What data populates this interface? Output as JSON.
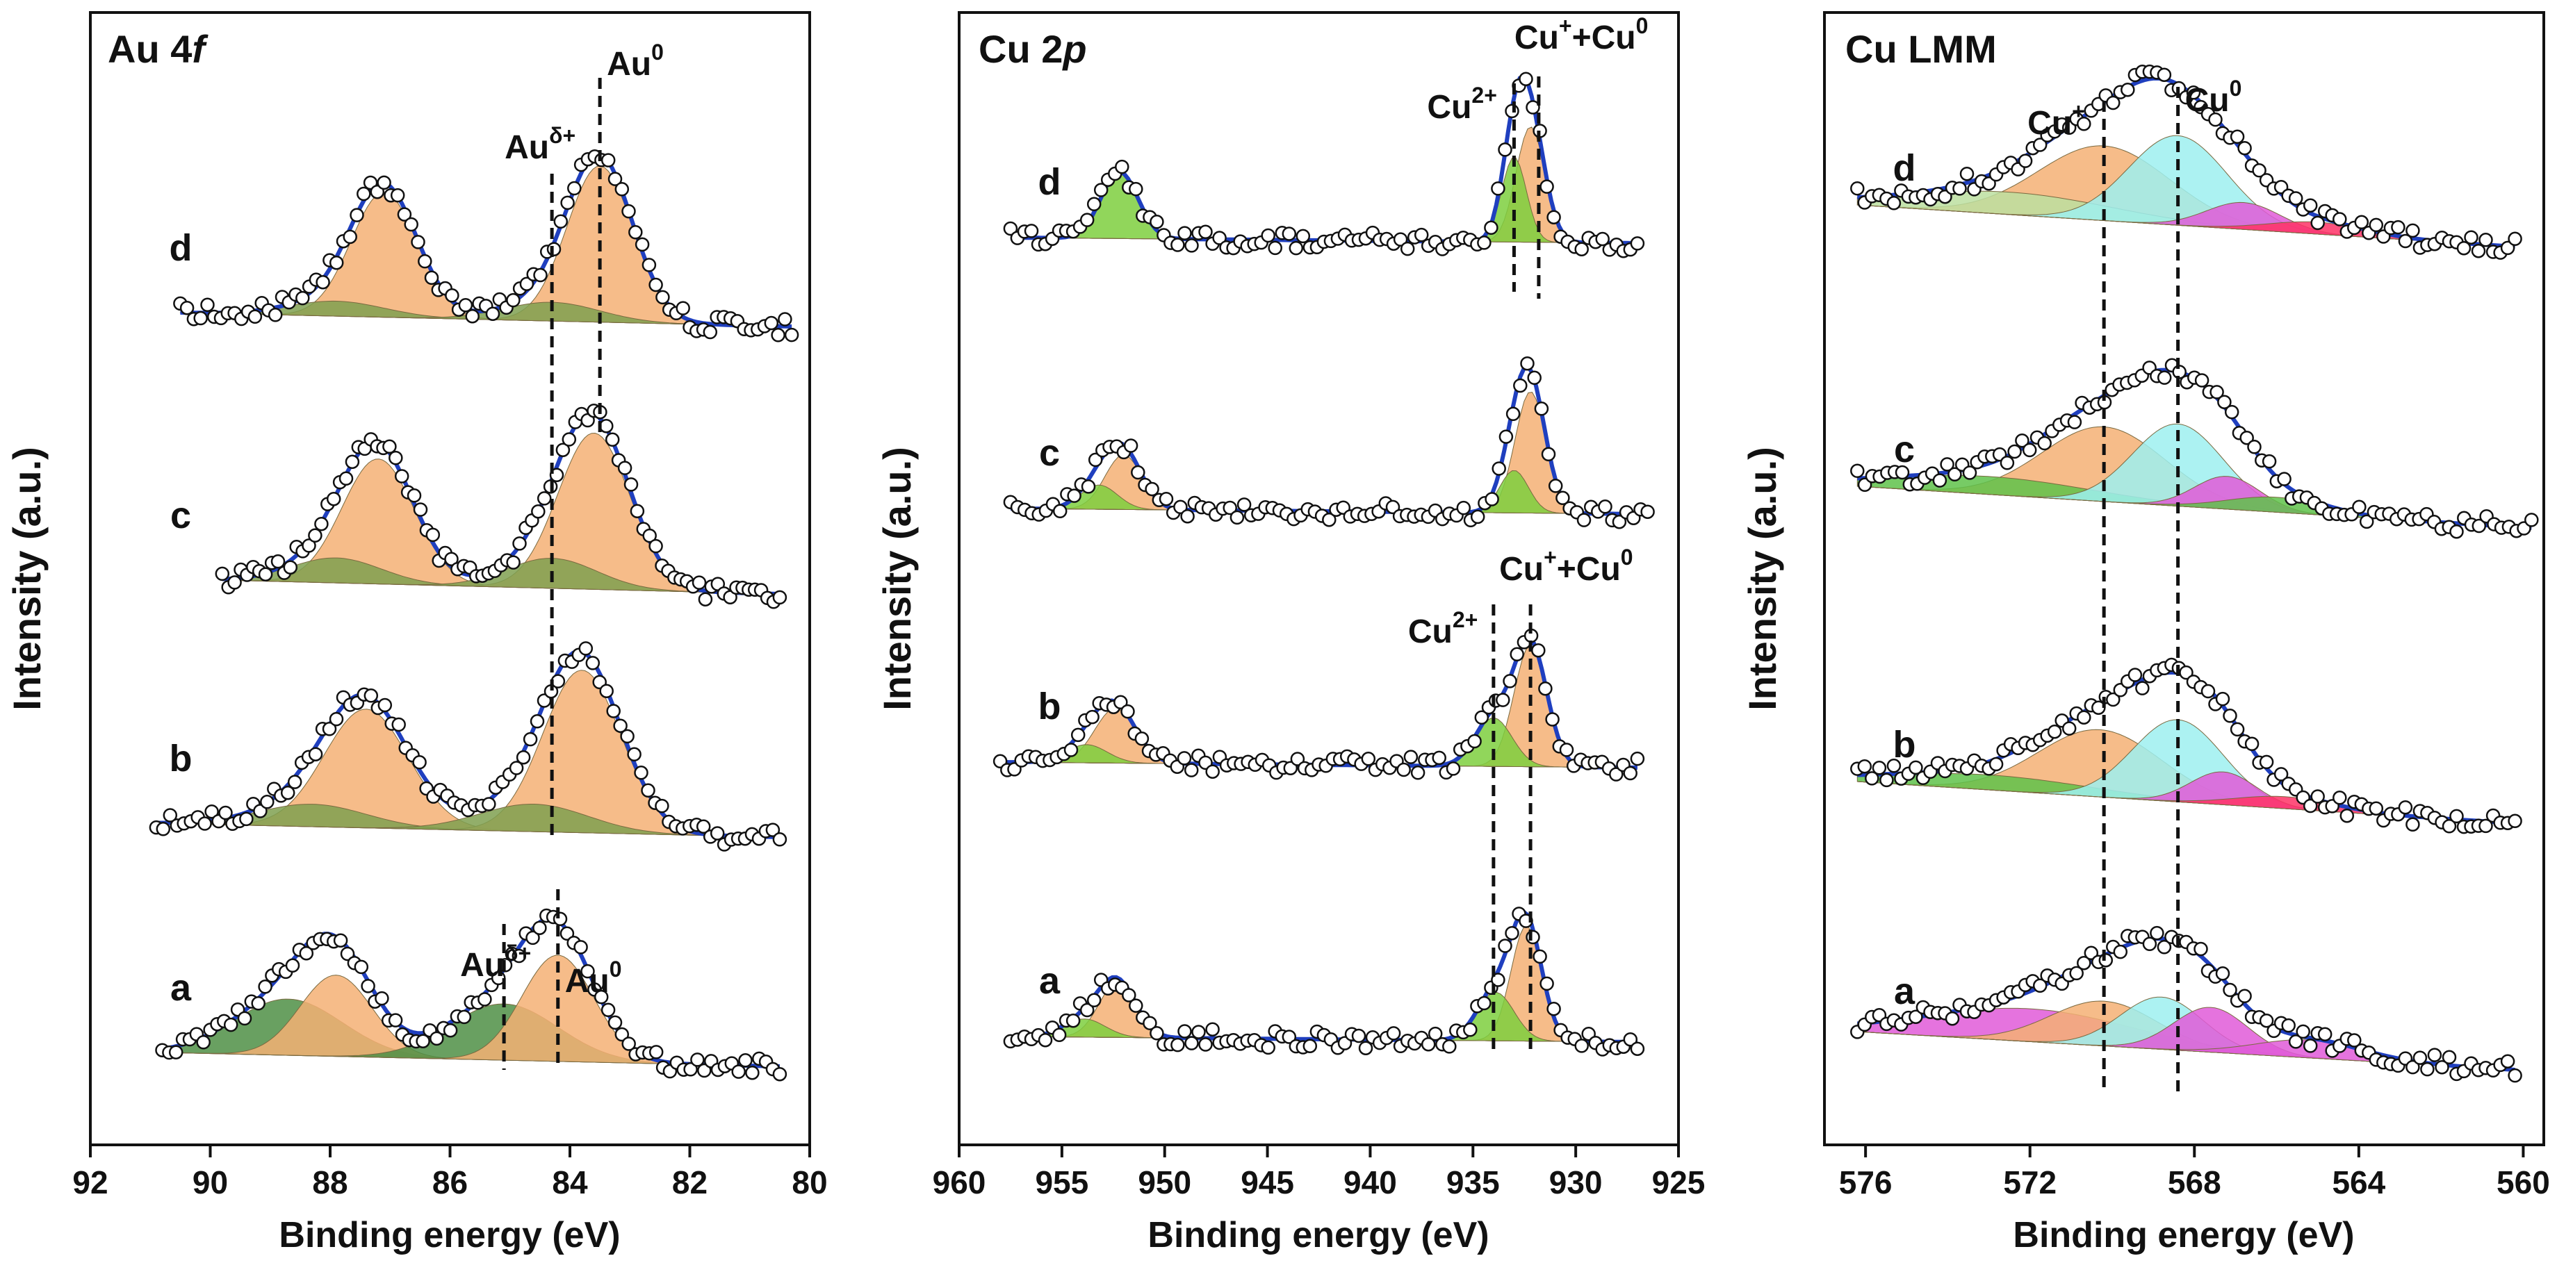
{
  "figure": {
    "ylabel": "Intensity (a.u.)",
    "xlabel": "Binding energy (eV)"
  },
  "chart_data": [
    {
      "type": "line",
      "title": "Au 4f",
      "title_parts": [
        "Au 4",
        "f"
      ],
      "xlabel": "Binding energy (eV)",
      "ylabel": "Intensity (a.u.)",
      "xlim": [
        92,
        80
      ],
      "xticks": [
        92,
        90,
        88,
        86,
        84,
        82,
        80
      ],
      "series_labels": [
        "d",
        "c",
        "b",
        "a"
      ],
      "series": [
        {
          "name": "d",
          "range": [
            90.5,
            80.3
          ],
          "baseline": 0.0,
          "components": [
            {
              "color": "#f5b074",
              "center": 87.1,
              "height": 1.0,
              "width": 0.55
            },
            {
              "color": "#f5b074",
              "center": 83.5,
              "height": 1.25,
              "width": 0.55
            },
            {
              "color": "#7fa050",
              "center": 87.9,
              "height": 0.12,
              "width": 0.8
            },
            {
              "color": "#7fa050",
              "center": 84.3,
              "height": 0.15,
              "width": 0.8
            }
          ]
        },
        {
          "name": "c",
          "range": [
            89.8,
            80.5
          ],
          "baseline": 0.0,
          "components": [
            {
              "color": "#f5b074",
              "center": 87.2,
              "height": 1.0,
              "width": 0.6
            },
            {
              "color": "#f5b074",
              "center": 83.6,
              "height": 1.25,
              "width": 0.6
            },
            {
              "color": "#7fa050",
              "center": 87.9,
              "height": 0.2,
              "width": 0.75
            },
            {
              "color": "#7fa050",
              "center": 84.3,
              "height": 0.24,
              "width": 0.75
            }
          ]
        },
        {
          "name": "b",
          "range": [
            90.9,
            80.5
          ],
          "baseline": 0.0,
          "components": [
            {
              "color": "#f5b074",
              "center": 87.4,
              "height": 0.95,
              "width": 0.7
            },
            {
              "color": "#f5b074",
              "center": 83.8,
              "height": 1.3,
              "width": 0.65
            },
            {
              "color": "#7fa050",
              "center": 88.3,
              "height": 0.18,
              "width": 0.9
            },
            {
              "color": "#7fa050",
              "center": 84.6,
              "height": 0.22,
              "width": 0.9
            }
          ]
        },
        {
          "name": "a",
          "range": [
            90.8,
            80.5
          ],
          "baseline": 0.0,
          "components": [
            {
              "color": "#4f8f45",
              "center": 88.7,
              "height": 0.45,
              "width": 0.9
            },
            {
              "color": "#f5b074",
              "center": 87.9,
              "height": 0.65,
              "width": 0.6
            },
            {
              "color": "#4f8f45",
              "center": 85.1,
              "height": 0.45,
              "width": 0.9
            },
            {
              "color": "#f5b074",
              "center": 84.2,
              "height": 0.85,
              "width": 0.6
            }
          ]
        }
      ],
      "annotations": [
        {
          "label": "Au",
          "sup": "0",
          "x": 83.5
        },
        {
          "label": "Au",
          "sup": "δ+",
          "x": 84.3
        },
        {
          "label": "Au",
          "sup": "δ+",
          "x": 85.1
        },
        {
          "label": "Au",
          "sup": "0",
          "x": 84.2
        }
      ]
    },
    {
      "type": "line",
      "title": "Cu 2p",
      "title_parts": [
        "Cu 2",
        "p"
      ],
      "xlabel": "Binding energy (eV)",
      "ylabel": "Intensity (a.u.)",
      "xlim": [
        960,
        925
      ],
      "xticks": [
        960,
        955,
        950,
        945,
        940,
        935,
        930,
        925
      ],
      "series_labels": [
        "d",
        "c",
        "b",
        "a"
      ],
      "series": [
        {
          "name": "d",
          "range": [
            957.5,
            927
          ],
          "baseline": 0.0,
          "components": [
            {
              "color": "#7ecf3e",
              "center": 952.2,
              "height": 0.55,
              "width": 0.9
            },
            {
              "color": "#f5b074",
              "center": 932.2,
              "height": 0.95,
              "width": 0.7
            },
            {
              "color": "#7ecf3e",
              "center": 933.0,
              "height": 0.7,
              "width": 0.6
            }
          ]
        },
        {
          "name": "c",
          "range": [
            957.5,
            926.5
          ],
          "baseline": 0.0,
          "components": [
            {
              "color": "#f5b074",
              "center": 952.0,
              "height": 0.45,
              "width": 0.9
            },
            {
              "color": "#7ecf3e",
              "center": 953.2,
              "height": 0.2,
              "width": 0.9
            },
            {
              "color": "#f5b074",
              "center": 932.2,
              "height": 1.0,
              "width": 0.75
            },
            {
              "color": "#7ecf3e",
              "center": 933.0,
              "height": 0.35,
              "width": 0.7
            }
          ]
        },
        {
          "name": "b",
          "range": [
            958,
            927
          ],
          "baseline": 0.0,
          "components": [
            {
              "color": "#f5b074",
              "center": 952.4,
              "height": 0.45,
              "width": 1.0
            },
            {
              "color": "#7ecf3e",
              "center": 953.8,
              "height": 0.15,
              "width": 1.0
            },
            {
              "color": "#f5b074",
              "center": 932.2,
              "height": 1.0,
              "width": 0.8
            },
            {
              "color": "#7ecf3e",
              "center": 934.0,
              "height": 0.4,
              "width": 0.9
            }
          ]
        },
        {
          "name": "a",
          "range": [
            957.5,
            927
          ],
          "baseline": 0.0,
          "components": [
            {
              "color": "#f5b074",
              "center": 952.3,
              "height": 0.45,
              "width": 0.9
            },
            {
              "color": "#7ecf3e",
              "center": 953.9,
              "height": 0.15,
              "width": 1.0
            },
            {
              "color": "#f5b074",
              "center": 932.4,
              "height": 0.95,
              "width": 0.75
            },
            {
              "color": "#7ecf3e",
              "center": 933.9,
              "height": 0.4,
              "width": 0.9
            }
          ]
        }
      ],
      "annotations": [
        {
          "label": "Cu",
          "sup": "+",
          "label2": "+Cu",
          "sup2": "0",
          "x": 931.8
        },
        {
          "label": "Cu",
          "sup": "2+",
          "x": 933.0
        },
        {
          "label": "Cu",
          "sup": "+",
          "label2": "+Cu",
          "sup2": "0",
          "x": 932.2
        },
        {
          "label": "Cu",
          "sup": "2+",
          "x": 934.0
        }
      ]
    },
    {
      "type": "line",
      "title": "Cu LMM",
      "xlabel": "Binding energy (eV)",
      "ylabel": "Intensity (a.u.)",
      "xlim": [
        577,
        559.5
      ],
      "xticks": [
        576,
        572,
        568,
        564,
        560
      ],
      "series_labels": [
        "d",
        "c",
        "b",
        "a"
      ],
      "series": [
        {
          "name": "d",
          "range": [
            576.2,
            560.2
          ],
          "baseline": 0.0,
          "components": [
            {
              "color": "#f5b074",
              "center": 570.2,
              "height": 0.5,
              "width": 1.6
            },
            {
              "color": "#bcdfa0",
              "center": 572.5,
              "height": 0.15,
              "width": 2.5
            },
            {
              "color": "#9ef0f0",
              "center": 568.4,
              "height": 0.6,
              "width": 1.2
            },
            {
              "color": "#e05ad8",
              "center": 566.8,
              "height": 0.18,
              "width": 0.9
            },
            {
              "color": "#ff3366",
              "center": 565.0,
              "height": 0.08,
              "width": 1.2
            }
          ]
        },
        {
          "name": "c",
          "range": [
            576.2,
            559.8
          ],
          "baseline": 0.0,
          "components": [
            {
              "color": "#f5b074",
              "center": 570.2,
              "height": 0.5,
              "width": 1.5
            },
            {
              "color": "#5fc24a",
              "center": 573.0,
              "height": 0.12,
              "width": 2.5
            },
            {
              "color": "#9ef0f0",
              "center": 568.4,
              "height": 0.55,
              "width": 1.1
            },
            {
              "color": "#e05ad8",
              "center": 567.2,
              "height": 0.22,
              "width": 0.8
            },
            {
              "color": "#5fc24a",
              "center": 566.0,
              "height": 0.1,
              "width": 1.2
            }
          ]
        },
        {
          "name": "b",
          "range": [
            576.2,
            560.2
          ],
          "baseline": 0.0,
          "components": [
            {
              "color": "#f5b074",
              "center": 570.3,
              "height": 0.45,
              "width": 1.5
            },
            {
              "color": "#5fc24a",
              "center": 573.0,
              "height": 0.1,
              "width": 2.5
            },
            {
              "color": "#9ef0f0",
              "center": 568.4,
              "height": 0.55,
              "width": 1.1
            },
            {
              "color": "#e05ad8",
              "center": 567.3,
              "height": 0.22,
              "width": 0.8
            },
            {
              "color": "#ff3366",
              "center": 565.8,
              "height": 0.08,
              "width": 1.2
            }
          ]
        },
        {
          "name": "a",
          "range": [
            576.2,
            560.2
          ],
          "baseline": 0.0,
          "components": [
            {
              "color": "#e05ad8",
              "center": 572.0,
              "height": 0.22,
              "width": 2.5
            },
            {
              "color": "#f5b074",
              "center": 570.2,
              "height": 0.3,
              "width": 1.3
            },
            {
              "color": "#9ef0f0",
              "center": 568.8,
              "height": 0.35,
              "width": 1.0
            },
            {
              "color": "#e05ad8",
              "center": 567.6,
              "height": 0.3,
              "width": 0.9
            },
            {
              "color": "#e05ad8",
              "center": 565.2,
              "height": 0.12,
              "width": 1.3
            }
          ]
        }
      ],
      "annotations": [
        {
          "label": "Cu",
          "sup": "+",
          "x": 570.2
        },
        {
          "label": "Cu",
          "sup": "0",
          "x": 568.4
        }
      ]
    }
  ]
}
